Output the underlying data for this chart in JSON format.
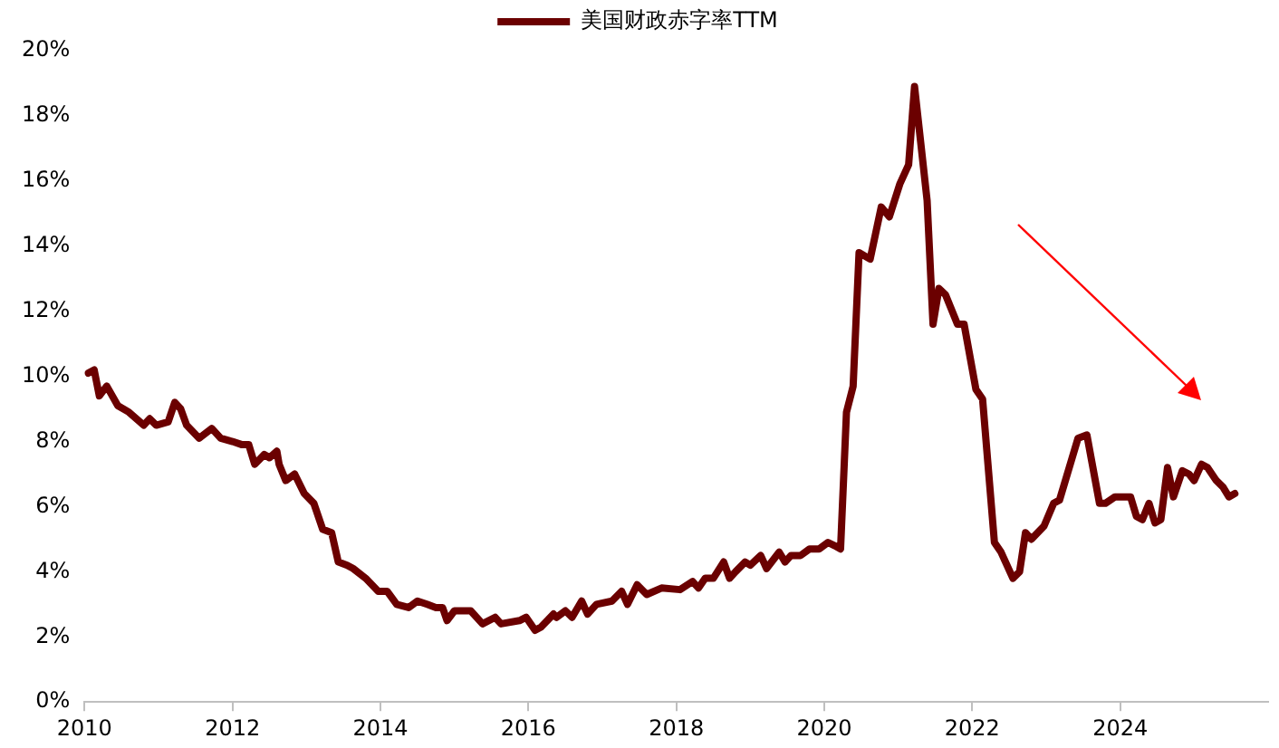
{
  "chart_data": {
    "type": "line",
    "legend": "top",
    "marker": "none",
    "line_style": "solid",
    "grid": false,
    "xlim": [
      2010,
      2026
    ],
    "xticks": [
      2010,
      2012,
      2014,
      2016,
      2018,
      2020,
      2022,
      2024
    ],
    "ylim": [
      0,
      20
    ],
    "yticks": [
      {
        "value": 0,
        "label": "0%"
      },
      {
        "value": 2,
        "label": "2%"
      },
      {
        "value": 4,
        "label": "4%"
      },
      {
        "value": 6,
        "label": "6%"
      },
      {
        "value": 8,
        "label": "8%"
      },
      {
        "value": 10,
        "label": "10%"
      },
      {
        "value": 12,
        "label": "12%"
      },
      {
        "value": 14,
        "label": "14%"
      },
      {
        "value": 16,
        "label": "16%"
      },
      {
        "value": 18,
        "label": "18%"
      },
      {
        "value": 20,
        "label": "20%"
      }
    ],
    "x": [
      2010.05,
      2010.13,
      2010.2,
      2010.3,
      2010.45,
      2010.6,
      2010.8,
      2010.88,
      2010.97,
      2011.13,
      2011.22,
      2011.3,
      2011.38,
      2011.55,
      2011.72,
      2011.84,
      2012.0,
      2012.13,
      2012.22,
      2012.3,
      2012.43,
      2012.5,
      2012.6,
      2012.63,
      2012.72,
      2012.84,
      2012.97,
      2013.1,
      2013.22,
      2013.34,
      2013.43,
      2013.55,
      2013.63,
      2013.8,
      2013.97,
      2014.09,
      2014.22,
      2014.38,
      2014.5,
      2014.63,
      2014.75,
      2014.84,
      2014.9,
      2015.0,
      2015.22,
      2015.38,
      2015.55,
      2015.63,
      2015.88,
      2015.97,
      2016.09,
      2016.17,
      2016.34,
      2016.38,
      2016.5,
      2016.59,
      2016.72,
      2016.8,
      2016.92,
      2017.13,
      2017.26,
      2017.34,
      2017.47,
      2017.6,
      2017.8,
      2018.05,
      2018.22,
      2018.3,
      2018.39,
      2018.5,
      2018.64,
      2018.72,
      2018.8,
      2018.93,
      2019.0,
      2019.14,
      2019.22,
      2019.39,
      2019.47,
      2019.55,
      2019.68,
      2019.8,
      2019.93,
      2020.05,
      2020.14,
      2020.22,
      2020.3,
      2020.39,
      2020.47,
      2020.62,
      2020.77,
      2020.88,
      2021.02,
      2021.14,
      2021.22,
      2021.39,
      2021.47,
      2021.55,
      2021.64,
      2021.8,
      2021.89,
      2022.05,
      2022.14,
      2022.3,
      2022.39,
      2022.55,
      2022.64,
      2022.72,
      2022.8,
      2022.97,
      2023.1,
      2023.18,
      2023.43,
      2023.55,
      2023.72,
      2023.8,
      2023.93,
      2024.14,
      2024.22,
      2024.3,
      2024.39,
      2024.47,
      2024.55,
      2024.64,
      2024.72,
      2024.84,
      2024.93,
      2025.0,
      2025.1,
      2025.18,
      2025.3,
      2025.39,
      2025.47,
      2025.55
    ],
    "series": [
      {
        "name": "美国财政赤字率TTM",
        "color": "#6b0000",
        "values": [
          10.1,
          10.2,
          9.4,
          9.7,
          9.1,
          8.9,
          8.5,
          8.7,
          8.5,
          8.6,
          9.2,
          9.0,
          8.5,
          8.1,
          8.4,
          8.1,
          8.0,
          7.9,
          7.9,
          7.3,
          7.6,
          7.5,
          7.7,
          7.3,
          6.8,
          7.0,
          6.4,
          6.1,
          5.3,
          5.2,
          4.3,
          4.2,
          4.1,
          3.8,
          3.4,
          3.4,
          3.0,
          2.9,
          3.1,
          3.0,
          2.9,
          2.9,
          2.5,
          2.8,
          2.8,
          2.4,
          2.6,
          2.4,
          2.5,
          2.6,
          2.2,
          2.3,
          2.7,
          2.6,
          2.8,
          2.6,
          3.1,
          2.7,
          3.0,
          3.1,
          3.4,
          3.0,
          3.6,
          3.3,
          3.5,
          3.45,
          3.7,
          3.5,
          3.8,
          3.8,
          4.3,
          3.8,
          4.0,
          4.3,
          4.2,
          4.5,
          4.1,
          4.6,
          4.3,
          4.5,
          4.5,
          4.7,
          4.7,
          4.9,
          4.8,
          4.7,
          8.9,
          9.7,
          13.8,
          13.6,
          15.2,
          14.9,
          15.9,
          16.5,
          18.9,
          15.4,
          11.6,
          12.7,
          12.5,
          11.6,
          11.6,
          9.6,
          9.3,
          4.9,
          4.6,
          3.8,
          4.0,
          5.2,
          5.0,
          5.4,
          6.1,
          6.2,
          8.1,
          8.2,
          6.1,
          6.1,
          6.3,
          6.3,
          5.7,
          5.6,
          6.1,
          5.5,
          5.6,
          7.2,
          6.3,
          7.1,
          7.0,
          6.8,
          7.3,
          7.2,
          6.8,
          6.6,
          6.3,
          6.4
        ]
      }
    ]
  }
}
